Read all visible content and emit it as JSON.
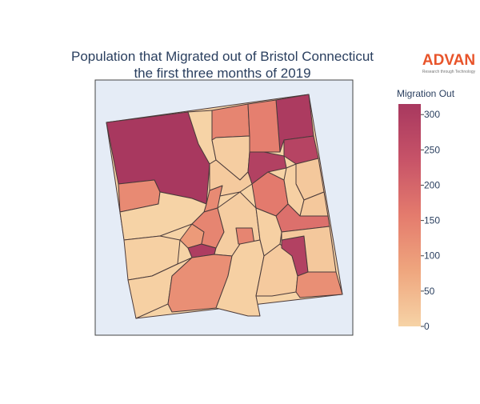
{
  "chart_data": {
    "type": "choropleth",
    "title": [
      "Population that Migrated out of Bristol Connecticut",
      "the first three months of 2019"
    ],
    "logo": "ADVAN",
    "logo_tagline": "Research through Technology",
    "colorbar_title": "Migration Out",
    "zlim": [
      0,
      315
    ],
    "zticks": [
      0,
      50,
      100,
      150,
      200,
      250,
      300
    ],
    "colorscale": [
      "#f6d3a6",
      "#efa67e",
      "#e47b6d",
      "#c75368",
      "#a8385f"
    ],
    "values": [
      315,
      130,
      0,
      140,
      10,
      305,
      280,
      150,
      290,
      20,
      130,
      15,
      160,
      5,
      0,
      20,
      180,
      5,
      100,
      300,
      140,
      10,
      140,
      5,
      5,
      120,
      5,
      15,
      290,
      20,
      120
    ]
  }
}
